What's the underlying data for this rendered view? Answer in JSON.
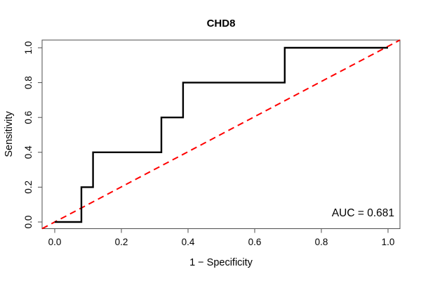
{
  "chart_data": {
    "type": "line",
    "subtype": "roc-step-curve",
    "title": "CHD8",
    "xlabel": "1 − Specificity",
    "ylabel": "Sensitivity",
    "xlim": [
      0,
      1
    ],
    "ylim": [
      0,
      1
    ],
    "grid": false,
    "legend": "none",
    "xtick_labels": [
      "0.0",
      "0.2",
      "0.4",
      "0.6",
      "0.8",
      "1.0"
    ],
    "ytick_labels": [
      "0.0",
      "0.2",
      "0.4",
      "0.6",
      "0.8",
      "1.0"
    ],
    "annotation": {
      "text": "AUC = 0.681",
      "auc_value": 0.681,
      "position": "bottom-right"
    },
    "series": [
      {
        "name": "roc-curve",
        "type": "step",
        "color": "#000000",
        "line_style": "solid",
        "line_width": 2,
        "points": [
          [
            0,
            0
          ],
          [
            0.08,
            0
          ],
          [
            0.08,
            0.2
          ],
          [
            0.115,
            0.2
          ],
          [
            0.115,
            0.4
          ],
          [
            0.32,
            0.4
          ],
          [
            0.32,
            0.6
          ],
          [
            0.385,
            0.6
          ],
          [
            0.385,
            0.8
          ],
          [
            0.69,
            0.8
          ],
          [
            0.69,
            1.0
          ],
          [
            1.0,
            1.0
          ]
        ]
      },
      {
        "name": "chance-diagonal",
        "type": "line",
        "color": "#ff0000",
        "line_style": "dashed",
        "line_width": 2,
        "points": [
          [
            0,
            0
          ],
          [
            1,
            1
          ]
        ]
      }
    ]
  }
}
